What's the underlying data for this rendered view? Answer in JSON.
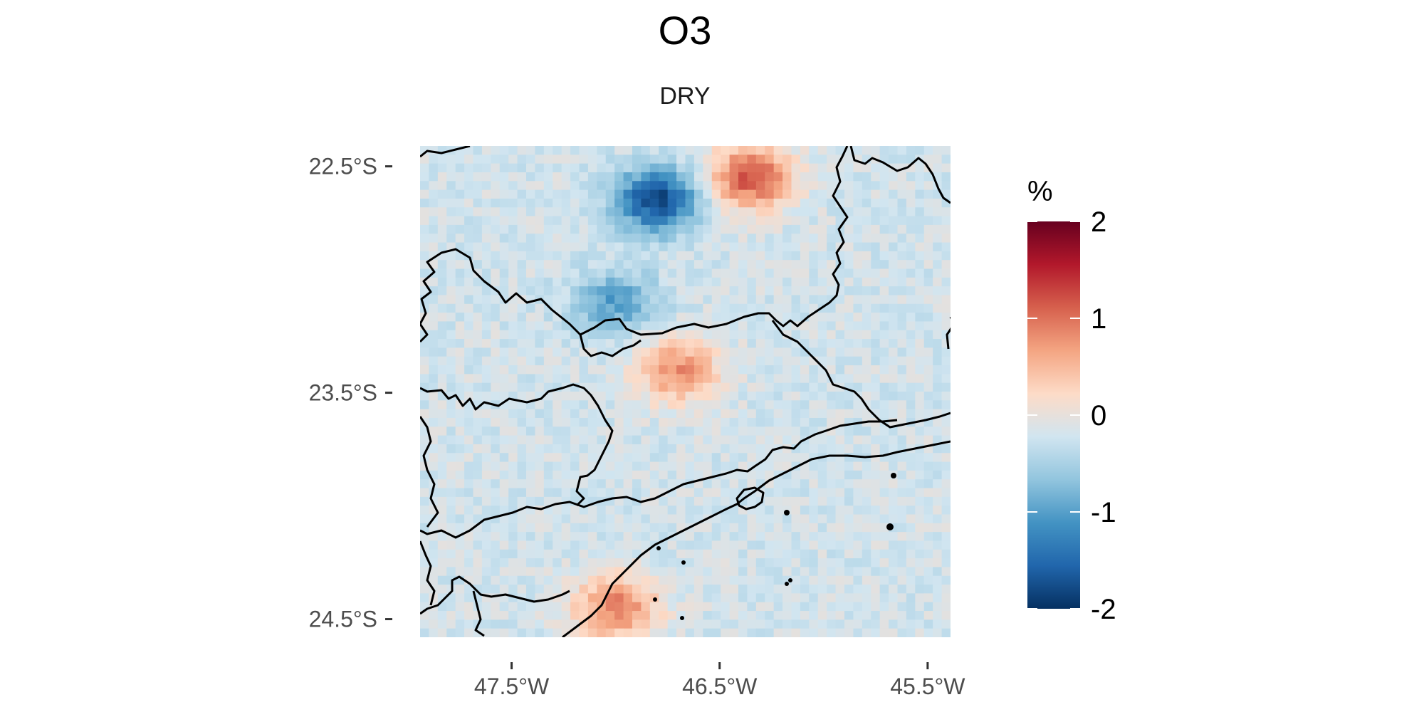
{
  "title": "O3",
  "subtitle": "DRY",
  "chart_data": {
    "type": "heatmap",
    "variable": "O3",
    "period": "DRY",
    "units": "%",
    "x_axis": {
      "ticks": [
        "47.5°W",
        "46.5°W",
        "45.5°W"
      ],
      "tick_values": [
        -47.5,
        -46.5,
        -45.5
      ],
      "range": [
        -47.94,
        -45.39
      ]
    },
    "y_axis": {
      "ticks": [
        "22.5°S",
        "23.5°S",
        "24.5°S"
      ],
      "tick_values": [
        -22.5,
        -23.5,
        -24.5
      ],
      "range": [
        -24.58,
        -22.41
      ]
    },
    "color_scale": {
      "title": "%",
      "range": [
        -2,
        2
      ],
      "ticks": [
        2,
        1,
        0,
        -1,
        -2
      ],
      "tick_labels": [
        "2",
        "1",
        "0",
        "-1",
        "-2"
      ],
      "palette": "RdBu diverging",
      "stops": [
        "#053061",
        "#2166ac",
        "#4393c3",
        "#92c5de",
        "#d1e5f0",
        "#fddbc7",
        "#f4a582",
        "#d6604d",
        "#b2182b",
        "#67001f"
      ]
    },
    "field_description": {
      "background_value": -0.2,
      "notable_areas": [
        {
          "label": "strong negative (northern center)",
          "lon": -46.8,
          "lat": -22.65,
          "value": -1.8
        },
        {
          "label": "positive (northeast)",
          "lon": -46.35,
          "lat": -22.55,
          "value": 1.2
        },
        {
          "label": "positive (central)",
          "lon": -46.7,
          "lat": -23.4,
          "value": 0.8
        },
        {
          "label": "positive (southwest coast)",
          "lon": -47.0,
          "lat": -24.45,
          "value": 0.9
        },
        {
          "label": "negative streak (west-central)",
          "lon": -47.0,
          "lat": -23.1,
          "value": -1.0
        }
      ]
    },
    "grid": false,
    "legend_position": "right"
  }
}
